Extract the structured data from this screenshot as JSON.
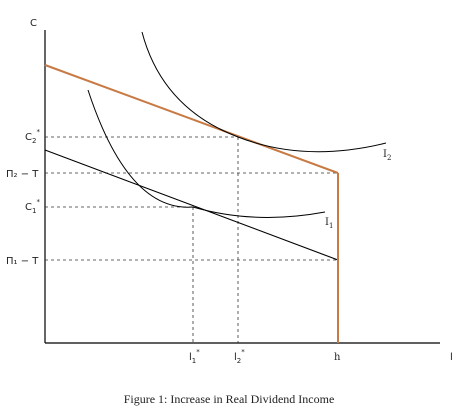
{
  "axes": {
    "y_label": "C",
    "x_label": "l"
  },
  "y_ticks": {
    "c2_star": {
      "base": "C",
      "sub": "2",
      "sup": "*"
    },
    "pi2_minus_t": "Π₂ − T",
    "c1_star": {
      "base": "C",
      "sub": "1",
      "sup": "*"
    },
    "pi1_minus_t": "Π₁ − T"
  },
  "x_ticks": {
    "l1_star": {
      "base": "l",
      "sub": "1",
      "sup": "*"
    },
    "l2_star": {
      "base": "l",
      "sub": "2",
      "sup": "*"
    },
    "h": "h"
  },
  "curve_labels": {
    "i1": {
      "base": "I",
      "sub": "1"
    },
    "i2": {
      "base": "I",
      "sub": "2"
    }
  },
  "caption": "Figure 1: Increase in Real Dividend Income",
  "colors": {
    "budget_high": "#c87a44",
    "budget_low": "#000000",
    "guide": "#333333"
  }
}
